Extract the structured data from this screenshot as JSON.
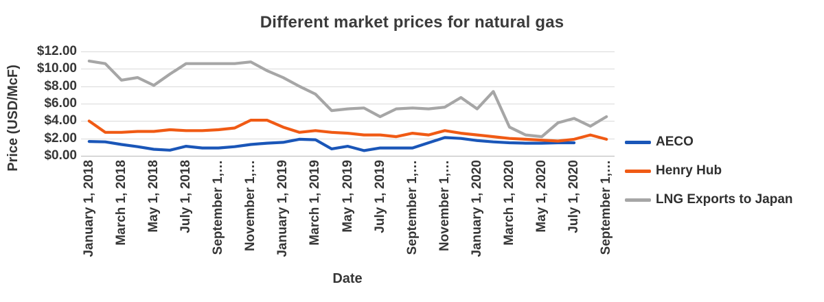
{
  "chart_data": {
    "type": "line",
    "title": "Different market prices for natural gas",
    "xlabel": "Date",
    "ylabel": "Price (USD/McF)",
    "ylim": [
      0,
      12
    ],
    "grid": true,
    "legend_position": "right",
    "y_tick_labels": [
      "$0.00",
      "$2.00",
      "$4.00",
      "$6.00",
      "$8.00",
      "$10.00",
      "$12.00"
    ],
    "x_tick_labels": [
      "January 1, 2018",
      "March 1, 2018",
      "May 1, 2018",
      "July 1, 2018",
      "September 1,…",
      "November 1,…",
      "January 1, 2019",
      "March 1, 2019",
      "May 1, 2019",
      "July 1, 2019",
      "September 1,…",
      "November 1,…",
      "January 1, 2020",
      "March 1, 2020",
      "May 1, 2020",
      "July 1, 2020",
      "September 1,…"
    ],
    "categories": [
      "January 1, 2018",
      "February 1, 2018",
      "March 1, 2018",
      "April 1, 2018",
      "May 1, 2018",
      "June 1, 2018",
      "July 1, 2018",
      "August 1, 2018",
      "September 1, 2018",
      "October 1, 2018",
      "November 1, 2018",
      "December 1, 2018",
      "January 1, 2019",
      "February 1, 2019",
      "March 1, 2019",
      "April 1, 2019",
      "May 1, 2019",
      "June 1, 2019",
      "July 1, 2019",
      "August 1, 2019",
      "September 1, 2019",
      "October 1, 2019",
      "November 1, 2019",
      "December 1, 2019",
      "January 1, 2020",
      "February 1, 2020",
      "March 1, 2020",
      "April 1, 2020",
      "May 1, 2020",
      "June 1, 2020",
      "July 1, 2020",
      "August 1, 2020",
      "September 1, 2020"
    ],
    "series": [
      {
        "name": "AECO",
        "color": "#1A56B8",
        "values": [
          1.65,
          1.6,
          1.3,
          1.05,
          0.75,
          0.65,
          1.1,
          0.9,
          0.9,
          1.05,
          1.3,
          1.45,
          1.55,
          1.9,
          1.85,
          0.8,
          1.1,
          0.6,
          0.9,
          0.9,
          0.9,
          1.5,
          2.1,
          2.0,
          1.75,
          1.6,
          1.5,
          1.45,
          1.45,
          1.5,
          1.5,
          null,
          null
        ]
      },
      {
        "name": "Henry Hub",
        "color": "#F05A14",
        "values": [
          4.0,
          2.7,
          2.7,
          2.8,
          2.8,
          3.0,
          2.9,
          2.9,
          3.0,
          3.2,
          4.1,
          4.1,
          3.3,
          2.7,
          2.9,
          2.7,
          2.6,
          2.4,
          2.4,
          2.2,
          2.6,
          2.4,
          2.9,
          2.6,
          2.4,
          2.2,
          2.0,
          1.9,
          1.8,
          1.7,
          1.9,
          2.4,
          1.9
        ]
      },
      {
        "name": "LNG Exports to Japan",
        "color": "#A6A6A6",
        "values": [
          10.9,
          10.6,
          8.7,
          9.0,
          8.1,
          9.4,
          10.6,
          10.6,
          10.6,
          10.6,
          10.8,
          9.8,
          9.0,
          8.0,
          7.1,
          5.2,
          5.4,
          5.5,
          4.5,
          5.4,
          5.5,
          5.4,
          5.6,
          6.7,
          5.4,
          7.4,
          3.3,
          2.4,
          2.2,
          3.8,
          4.3,
          3.4,
          4.5
        ]
      }
    ],
    "gridline_color": "#d9d9d9",
    "axis_line_color": "#b7b7b7"
  }
}
